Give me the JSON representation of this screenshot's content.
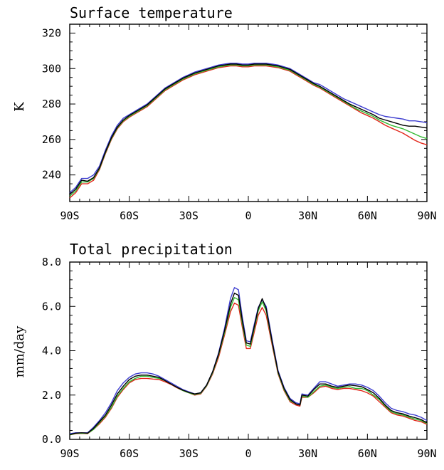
{
  "colors": {
    "black": "#000000",
    "blue": "#3c3ccf",
    "green": "#33bb33",
    "red": "#e2261a"
  },
  "chart_data": [
    {
      "type": "line",
      "title": "Surface temperature",
      "xlabel": "",
      "ylabel": "K",
      "xlim": [
        -90,
        90
      ],
      "ylim": [
        225,
        325
      ],
      "xticks": [
        -90,
        -60,
        -30,
        0,
        30,
        60,
        90
      ],
      "xtick_labels": [
        "90S",
        "60S",
        "30S",
        "0",
        "30N",
        "60N",
        "90N"
      ],
      "yticks": [
        240,
        260,
        280,
        300,
        320
      ],
      "ytick_labels": [
        "240",
        "260",
        "280",
        "300",
        "320"
      ],
      "minor_x_step": 5,
      "minor_y_step": 5,
      "x": [
        -90,
        -87,
        -84,
        -81,
        -78,
        -75,
        -72,
        -69,
        -66,
        -63,
        -60,
        -57,
        -54,
        -51,
        -48,
        -45,
        -42,
        -39,
        -36,
        -33,
        -30,
        -27,
        -24,
        -21,
        -18,
        -15,
        -12,
        -9,
        -6,
        -3,
        0,
        3,
        6,
        9,
        12,
        15,
        18,
        21,
        24,
        27,
        30,
        33,
        36,
        39,
        42,
        45,
        48,
        51,
        54,
        57,
        60,
        63,
        66,
        69,
        72,
        75,
        78,
        81,
        84,
        87,
        90
      ],
      "series": [
        {
          "color": "#3c3ccf",
          "values": [
            230,
            233,
            238,
            238,
            240,
            245,
            254,
            262,
            268,
            272,
            274,
            276,
            278,
            280,
            283,
            286,
            289,
            291,
            293,
            295,
            296.5,
            298,
            299,
            300,
            301,
            302,
            302.5,
            303,
            303,
            302.5,
            302.5,
            303,
            303,
            303,
            302.5,
            302,
            301,
            300,
            298,
            296,
            294,
            292,
            291,
            289,
            287,
            285,
            283,
            281.5,
            280,
            278.5,
            277,
            275.5,
            274,
            273,
            272.5,
            272,
            271.5,
            270.5,
            270.5,
            270,
            269.5
          ]
        },
        {
          "color": "#000000",
          "values": [
            229,
            232,
            237,
            236.5,
            238.5,
            244,
            253,
            261,
            267,
            271,
            273.5,
            275.5,
            277.5,
            279.5,
            282.5,
            285.5,
            288.5,
            290.5,
            292.5,
            294.5,
            296,
            297.5,
            298.5,
            299.5,
            300.5,
            301.5,
            302,
            302.5,
            302.5,
            302,
            302,
            302.5,
            302.5,
            302.5,
            302,
            301.5,
            300.5,
            299.5,
            297.5,
            295.5,
            293.5,
            291.5,
            290,
            288,
            286,
            284,
            282,
            280,
            278.5,
            277,
            275.5,
            274,
            272,
            271,
            270,
            269,
            268,
            267.5,
            267.5,
            267,
            266.5
          ]
        },
        {
          "color": "#33bb33",
          "values": [
            228,
            231,
            236,
            236,
            238,
            243.5,
            252.5,
            260.5,
            266.5,
            270.5,
            273,
            275,
            277,
            279,
            282,
            285,
            288,
            290,
            292,
            294,
            295.5,
            297,
            298,
            299,
            300,
            301,
            301.5,
            302,
            302,
            301.5,
            301.5,
            302,
            302,
            302,
            301.5,
            301,
            300,
            299,
            297,
            295,
            293,
            291,
            289.5,
            287.5,
            285.5,
            283.5,
            281.5,
            279.5,
            277.5,
            276,
            274.5,
            273,
            271,
            269.5,
            268,
            267,
            266,
            264.5,
            263,
            261.5,
            260.5
          ]
        },
        {
          "color": "#e2261a",
          "values": [
            227,
            230,
            235,
            235,
            237,
            243,
            252,
            260,
            266,
            270,
            272.5,
            274.5,
            276.5,
            278.5,
            281.5,
            284.5,
            287.5,
            289.5,
            291.5,
            293.5,
            295,
            296.5,
            297.5,
            298.5,
            299.5,
            300.5,
            301,
            301.5,
            301.5,
            301,
            301,
            301.5,
            301.5,
            301.5,
            301,
            300.5,
            299.5,
            298.5,
            296.5,
            294.5,
            292.5,
            290.5,
            289,
            287,
            285,
            283,
            281,
            279,
            277,
            275,
            273.5,
            272,
            270,
            268,
            266.5,
            265,
            263.5,
            261.5,
            259.5,
            258,
            257
          ]
        }
      ]
    },
    {
      "type": "line",
      "title": "Total precipitation",
      "xlabel": "",
      "ylabel": "mm/day",
      "xlim": [
        -90,
        90
      ],
      "ylim": [
        0,
        8
      ],
      "xticks": [
        -90,
        -60,
        -30,
        0,
        30,
        60,
        90
      ],
      "xtick_labels": [
        "90S",
        "60S",
        "30S",
        "0",
        "30N",
        "60N",
        "90N"
      ],
      "yticks": [
        0,
        2,
        4,
        6,
        8
      ],
      "ytick_labels": [
        "0.0",
        "2.0",
        "4.0",
        "6.0",
        "8.0"
      ],
      "minor_x_step": 5,
      "minor_y_step": 0.4,
      "x": [
        -90,
        -87,
        -84,
        -81,
        -78,
        -75,
        -72,
        -69,
        -66,
        -63,
        -60,
        -57,
        -54,
        -51,
        -48,
        -45,
        -42,
        -39,
        -36,
        -33,
        -30,
        -27,
        -24,
        -21,
        -18,
        -15,
        -12,
        -9,
        -7,
        -5,
        -3,
        -1,
        1,
        3,
        5,
        7,
        9,
        12,
        15,
        18,
        21,
        24,
        26,
        27,
        30,
        33,
        36,
        39,
        42,
        45,
        48,
        51,
        54,
        57,
        60,
        63,
        66,
        69,
        72,
        75,
        78,
        81,
        84,
        87,
        90
      ],
      "series": [
        {
          "color": "#3c3ccf",
          "values": [
            0.25,
            0.3,
            0.3,
            0.3,
            0.55,
            0.85,
            1.2,
            1.65,
            2.2,
            2.55,
            2.8,
            2.95,
            3.0,
            3.0,
            2.95,
            2.85,
            2.7,
            2.55,
            2.4,
            2.25,
            2.15,
            2.05,
            2.1,
            2.45,
            3.05,
            3.9,
            5.0,
            6.35,
            6.85,
            6.75,
            5.5,
            4.45,
            4.4,
            5.2,
            5.95,
            6.3,
            6.0,
            4.5,
            3.1,
            2.35,
            1.85,
            1.65,
            1.6,
            2.05,
            2.0,
            2.3,
            2.6,
            2.6,
            2.5,
            2.4,
            2.45,
            2.5,
            2.5,
            2.45,
            2.35,
            2.2,
            1.95,
            1.65,
            1.4,
            1.3,
            1.25,
            1.15,
            1.1,
            1.0,
            0.85
          ]
        },
        {
          "color": "#000000",
          "values": [
            0.22,
            0.28,
            0.3,
            0.28,
            0.5,
            0.8,
            1.1,
            1.55,
            2.05,
            2.4,
            2.7,
            2.85,
            2.9,
            2.9,
            2.85,
            2.8,
            2.65,
            2.5,
            2.35,
            2.22,
            2.12,
            2.05,
            2.1,
            2.45,
            3.05,
            3.85,
            4.9,
            6.1,
            6.6,
            6.5,
            5.35,
            4.35,
            4.3,
            5.1,
            5.9,
            6.35,
            5.9,
            4.4,
            3.05,
            2.3,
            1.8,
            1.6,
            1.55,
            2.0,
            1.95,
            2.25,
            2.5,
            2.5,
            2.4,
            2.35,
            2.4,
            2.45,
            2.42,
            2.38,
            2.25,
            2.1,
            1.85,
            1.55,
            1.3,
            1.2,
            1.15,
            1.05,
            0.98,
            0.9,
            0.75
          ]
        },
        {
          "color": "#33bb33",
          "values": [
            0.2,
            0.27,
            0.28,
            0.27,
            0.45,
            0.75,
            1.05,
            1.45,
            1.95,
            2.3,
            2.6,
            2.75,
            2.85,
            2.85,
            2.8,
            2.75,
            2.65,
            2.5,
            2.35,
            2.2,
            2.1,
            2.02,
            2.08,
            2.42,
            3.0,
            3.8,
            4.8,
            5.95,
            6.4,
            6.3,
            5.2,
            4.25,
            4.2,
            5.0,
            5.8,
            6.2,
            5.8,
            4.35,
            3.0,
            2.25,
            1.75,
            1.6,
            1.55,
            1.95,
            1.9,
            2.15,
            2.4,
            2.45,
            2.35,
            2.3,
            2.35,
            2.38,
            2.3,
            2.3,
            2.2,
            2.0,
            1.8,
            1.5,
            1.25,
            1.15,
            1.1,
            1.0,
            0.92,
            0.85,
            0.72
          ]
        },
        {
          "color": "#e2261a",
          "values": [
            0.2,
            0.26,
            0.27,
            0.26,
            0.45,
            0.7,
            1.0,
            1.4,
            1.9,
            2.25,
            2.55,
            2.7,
            2.75,
            2.75,
            2.72,
            2.7,
            2.6,
            2.48,
            2.33,
            2.2,
            2.1,
            2.0,
            2.05,
            2.4,
            2.95,
            3.7,
            4.7,
            5.75,
            6.15,
            6.05,
            5.05,
            4.1,
            4.1,
            4.85,
            5.6,
            5.95,
            5.6,
            4.25,
            2.95,
            2.2,
            1.7,
            1.55,
            1.5,
            1.9,
            1.9,
            2.1,
            2.35,
            2.4,
            2.3,
            2.25,
            2.3,
            2.3,
            2.25,
            2.2,
            2.1,
            1.95,
            1.7,
            1.45,
            1.2,
            1.1,
            1.05,
            0.95,
            0.85,
            0.8,
            0.68
          ]
        }
      ]
    }
  ]
}
